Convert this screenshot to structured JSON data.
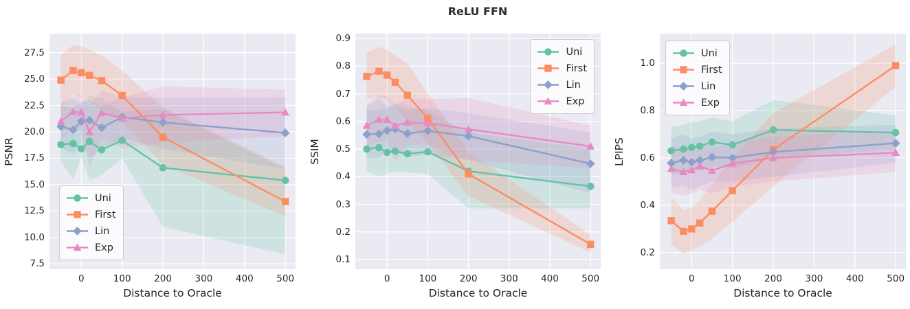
{
  "title": "ReLU FFN",
  "palette": {
    "uni": "#66c2a5",
    "first": "#fc8d62",
    "lin": "#8da0cb",
    "exp": "#e78ac3",
    "axes_background": "#eaeaf2",
    "grid": "#ffffff",
    "text": "#262626"
  },
  "chart_data": [
    {
      "type": "line",
      "ylabel": "PSNR",
      "xlabel": "Distance to Oracle",
      "grid": true,
      "legend_position": "bottom-left",
      "x": [
        -50,
        -20,
        0,
        20,
        50,
        100,
        200,
        500
      ],
      "xlim": [
        -78,
        525
      ],
      "ylim": [
        7.0,
        29.3
      ],
      "xticks": [
        0,
        100,
        200,
        300,
        400,
        500
      ],
      "xtick_labels": [
        "0",
        "100",
        "200",
        "300",
        "400",
        "500"
      ],
      "yticks": [
        7.5,
        10.0,
        12.5,
        15.0,
        17.5,
        20.0,
        22.5,
        25.0,
        27.5
      ],
      "ytick_labels": [
        "7.5",
        "10.0",
        "12.5",
        "15.0",
        "17.5",
        "20.0",
        "22.5",
        "25.0",
        "27.5"
      ],
      "series": [
        {
          "name": "Uni",
          "marker": "circle",
          "color": "#66c2a5",
          "values": [
            18.8,
            18.9,
            18.4,
            19.1,
            18.3,
            19.2,
            16.6,
            15.4
          ],
          "band_upper": [
            22.6,
            23.2,
            22.5,
            23.4,
            23.2,
            21.9,
            22.2,
            16.5
          ],
          "band_lower": [
            17.2,
            15.5,
            17.6,
            15.4,
            15.9,
            17.5,
            11.0,
            8.4
          ]
        },
        {
          "name": "First",
          "marker": "square",
          "color": "#fc8d62",
          "values": [
            24.9,
            25.8,
            25.6,
            25.35,
            24.85,
            23.45,
            19.5,
            13.4
          ],
          "band_upper": [
            27.3,
            28.2,
            28.1,
            27.8,
            27.2,
            25.8,
            22.3,
            16.7
          ],
          "band_lower": [
            22.3,
            23.5,
            23.3,
            22.9,
            22.2,
            20.9,
            16.9,
            12.0
          ]
        },
        {
          "name": "Lin",
          "marker": "diamond",
          "color": "#8da0cb",
          "values": [
            20.5,
            20.2,
            21.0,
            21.1,
            20.4,
            21.4,
            20.9,
            19.9
          ],
          "band_upper": [
            22.4,
            22.3,
            22.9,
            23.0,
            22.4,
            23.3,
            23.2,
            23.3
          ],
          "band_lower": [
            18.5,
            17.9,
            19.0,
            17.6,
            18.3,
            19.4,
            18.4,
            16.5
          ]
        },
        {
          "name": "Exp",
          "marker": "triangle",
          "color": "#e78ac3",
          "values": [
            21.0,
            21.9,
            21.85,
            20.0,
            21.8,
            21.3,
            21.6,
            21.85
          ],
          "band_upper": [
            22.8,
            23.4,
            23.5,
            22.5,
            23.9,
            23.3,
            24.3,
            24.0
          ],
          "band_lower": [
            19.2,
            20.3,
            20.2,
            16.6,
            19.4,
            18.4,
            19.0,
            19.6
          ]
        }
      ]
    },
    {
      "type": "line",
      "ylabel": "SSIM",
      "xlabel": "Distance to Oracle",
      "grid": true,
      "legend_position": "top-right",
      "x": [
        -50,
        -20,
        0,
        20,
        50,
        100,
        200,
        500
      ],
      "xlim": [
        -78,
        525
      ],
      "ylim": [
        0.065,
        0.918
      ],
      "xticks": [
        0,
        100,
        200,
        300,
        400,
        500
      ],
      "xtick_labels": [
        "0",
        "100",
        "200",
        "300",
        "400",
        "500"
      ],
      "yticks": [
        0.1,
        0.2,
        0.3,
        0.4,
        0.5,
        0.6,
        0.7,
        0.8,
        0.9
      ],
      "ytick_labels": [
        "0.1",
        "0.2",
        "0.3",
        "0.4",
        "0.5",
        "0.6",
        "0.7",
        "0.8",
        "0.9"
      ],
      "series": [
        {
          "name": "Uni",
          "marker": "circle",
          "color": "#66c2a5",
          "values": [
            0.5,
            0.505,
            0.488,
            0.492,
            0.483,
            0.49,
            0.42,
            0.365
          ],
          "band_upper": [
            0.655,
            0.68,
            0.655,
            0.665,
            0.655,
            0.64,
            0.56,
            0.5
          ],
          "band_lower": [
            0.42,
            0.4,
            0.41,
            0.42,
            0.415,
            0.41,
            0.285,
            0.285
          ]
        },
        {
          "name": "First",
          "marker": "square",
          "color": "#fc8d62",
          "values": [
            0.763,
            0.782,
            0.768,
            0.742,
            0.695,
            0.612,
            0.41,
            0.155
          ],
          "band_upper": [
            0.85,
            0.87,
            0.86,
            0.84,
            0.81,
            0.7,
            0.49,
            0.19
          ],
          "band_lower": [
            0.68,
            0.69,
            0.68,
            0.65,
            0.6,
            0.52,
            0.33,
            0.125
          ]
        },
        {
          "name": "Lin",
          "marker": "diamond",
          "color": "#8da0cb",
          "values": [
            0.553,
            0.555,
            0.567,
            0.572,
            0.556,
            0.566,
            0.547,
            0.447
          ],
          "band_upper": [
            0.64,
            0.64,
            0.65,
            0.655,
            0.64,
            0.65,
            0.63,
            0.56
          ],
          "band_lower": [
            0.465,
            0.47,
            0.49,
            0.49,
            0.47,
            0.48,
            0.46,
            0.34
          ]
        },
        {
          "name": "Exp",
          "marker": "triangle",
          "color": "#e78ac3",
          "values": [
            0.585,
            0.607,
            0.606,
            0.585,
            0.597,
            0.594,
            0.572,
            0.51
          ],
          "band_upper": [
            0.665,
            0.695,
            0.69,
            0.66,
            0.685,
            0.68,
            0.685,
            0.585
          ],
          "band_lower": [
            0.51,
            0.525,
            0.525,
            0.455,
            0.515,
            0.515,
            0.46,
            0.43
          ]
        }
      ]
    },
    {
      "type": "line",
      "ylabel": "LPIPS",
      "xlabel": "Distance to Oracle",
      "grid": true,
      "legend_position": "top-left",
      "x": [
        -50,
        -20,
        0,
        20,
        50,
        100,
        200,
        500
      ],
      "xlim": [
        -78,
        525
      ],
      "ylim": [
        0.13,
        1.125
      ],
      "xticks": [
        0,
        100,
        200,
        300,
        400,
        500
      ],
      "xtick_labels": [
        "0",
        "100",
        "200",
        "300",
        "400",
        "500"
      ],
      "yticks": [
        0.2,
        0.4,
        0.6,
        0.8,
        1.0
      ],
      "ytick_labels": [
        "0.2",
        "0.4",
        "0.6",
        "0.8",
        "1.0"
      ],
      "series": [
        {
          "name": "Uni",
          "marker": "circle",
          "color": "#66c2a5",
          "values": [
            0.63,
            0.637,
            0.644,
            0.65,
            0.667,
            0.655,
            0.718,
            0.707
          ],
          "band_upper": [
            0.73,
            0.74,
            0.75,
            0.755,
            0.77,
            0.755,
            0.845,
            0.78
          ],
          "band_lower": [
            0.53,
            0.535,
            0.545,
            0.55,
            0.565,
            0.555,
            0.6,
            0.635
          ]
        },
        {
          "name": "First",
          "marker": "square",
          "color": "#fc8d62",
          "values": [
            0.335,
            0.29,
            0.3,
            0.325,
            0.375,
            0.462,
            0.635,
            0.99
          ],
          "band_upper": [
            0.435,
            0.38,
            0.39,
            0.42,
            0.49,
            0.6,
            0.79,
            1.08
          ],
          "band_lower": [
            0.235,
            0.195,
            0.21,
            0.225,
            0.26,
            0.33,
            0.48,
            0.9
          ]
        },
        {
          "name": "Lin",
          "marker": "diamond",
          "color": "#8da0cb",
          "values": [
            0.578,
            0.59,
            0.582,
            0.59,
            0.603,
            0.6,
            0.625,
            0.662
          ],
          "band_upper": [
            0.685,
            0.7,
            0.68,
            0.69,
            0.71,
            0.7,
            0.725,
            0.74
          ],
          "band_lower": [
            0.475,
            0.485,
            0.465,
            0.48,
            0.5,
            0.5,
            0.52,
            0.58
          ]
        },
        {
          "name": "Exp",
          "marker": "triangle",
          "color": "#e78ac3",
          "values": [
            0.554,
            0.541,
            0.549,
            0.565,
            0.546,
            0.577,
            0.6,
            0.622
          ],
          "band_upper": [
            0.65,
            0.64,
            0.645,
            0.66,
            0.64,
            0.665,
            0.69,
            0.71
          ],
          "band_lower": [
            0.455,
            0.44,
            0.45,
            0.465,
            0.45,
            0.48,
            0.5,
            0.54
          ]
        }
      ]
    }
  ]
}
